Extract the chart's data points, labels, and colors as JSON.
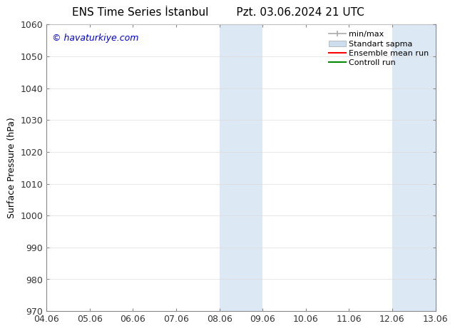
{
  "title_left": "ENS Time Series İstanbul",
  "title_right": "Pzt. 03.06.2024 21 UTC",
  "ylabel": "Surface Pressure (hPa)",
  "ylim": [
    970,
    1060
  ],
  "yticks": [
    970,
    980,
    990,
    1000,
    1010,
    1020,
    1030,
    1040,
    1050,
    1060
  ],
  "xtick_labels": [
    "04.06",
    "05.06",
    "06.06",
    "07.06",
    "08.06",
    "09.06",
    "10.06",
    "11.06",
    "12.06",
    "13.06"
  ],
  "shaded_bands": [
    {
      "xmin": 4.0,
      "xmax": 4.5
    },
    {
      "xmin": 4.5,
      "xmax": 5.0
    },
    {
      "xmin": 8.0,
      "xmax": 8.5
    },
    {
      "xmin": 8.5,
      "xmax": 9.0
    }
  ],
  "shaded_color": "#dce9f5",
  "watermark": "© havaturkiye.com",
  "watermark_color": "#0000cc",
  "legend_minmax_color": "#aaaaaa",
  "legend_std_color": "#ccdded",
  "legend_ens_color": "#ff0000",
  "legend_ctrl_color": "#008800",
  "background_color": "#ffffff",
  "spine_color": "#888888",
  "tick_color": "#333333",
  "font_size_title": 11,
  "font_size_tick": 9,
  "font_size_ylabel": 9,
  "font_size_legend": 8,
  "font_size_watermark": 9
}
